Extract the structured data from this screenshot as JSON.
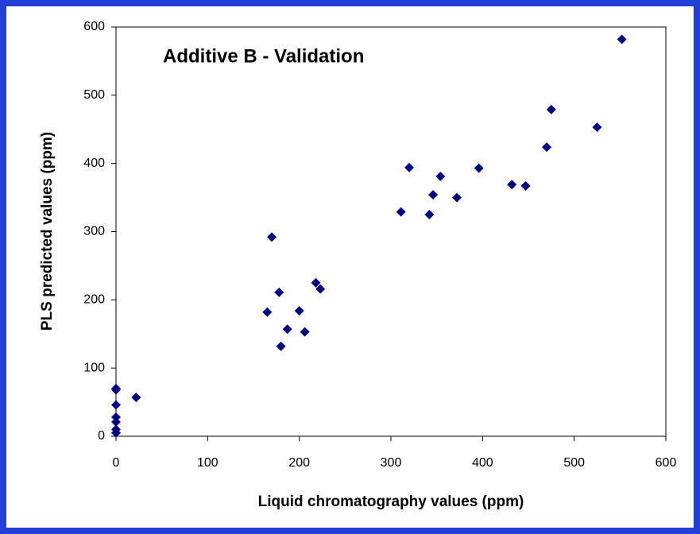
{
  "chart_data": {
    "type": "scatter",
    "title": "Additive B - Validation",
    "x_label": "Liquid chromatography values (ppm)",
    "y_label": "PLS predicted values (ppm)",
    "color": "#000080",
    "xlim": [
      0,
      600
    ],
    "ylim": [
      0,
      600
    ],
    "xticks": [
      0,
      100,
      200,
      300,
      400,
      500,
      600
    ],
    "yticks": [
      0,
      100,
      200,
      300,
      400,
      500,
      600
    ],
    "series": [
      {
        "name": "Validation",
        "x": [
          0,
          0,
          0,
          0,
          0,
          0,
          0,
          22,
          165,
          170,
          178,
          180,
          187,
          200,
          206,
          218,
          223,
          311,
          320,
          342,
          346,
          354,
          372,
          396,
          432,
          447,
          470,
          475,
          525,
          552
        ],
        "values": [
          70,
          68,
          46,
          28,
          21,
          10,
          5,
          57,
          182,
          292,
          211,
          132,
          157,
          184,
          153,
          225,
          216,
          329,
          394,
          325,
          354,
          381,
          350,
          393,
          369,
          367,
          424,
          479,
          453,
          582
        ]
      }
    ]
  }
}
